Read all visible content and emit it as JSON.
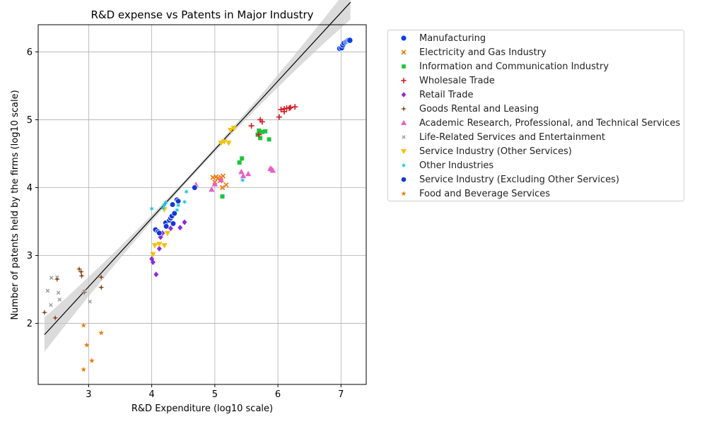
{
  "chart_data": {
    "type": "scatter",
    "title": "R&D expense vs Patents in Major Industry",
    "xlabel": "R&D Expenditure (log10 scale)",
    "ylabel": "Number of patents held by the firms (log10 scale)",
    "xlim": [
      2.2,
      7.4
    ],
    "ylim": [
      1.1,
      6.4
    ],
    "xticks": [
      3,
      4,
      5,
      6,
      7
    ],
    "yticks": [
      2,
      3,
      4,
      5,
      6
    ],
    "grid": true,
    "legend_position": "outside-right",
    "regression": {
      "intercept": -0.49,
      "slope": 1.01,
      "x_range": [
        2.3,
        7.15
      ],
      "confidence_band": true
    },
    "series": [
      {
        "name": "Manufacturing",
        "marker": "circle",
        "color": "#0a3ee6",
        "points": [
          [
            6.98,
            6.05
          ],
          [
            7.01,
            6.06
          ],
          [
            7.03,
            6.1
          ],
          [
            7.05,
            6.13
          ],
          [
            7.08,
            6.15
          ],
          [
            7.1,
            6.16
          ],
          [
            7.12,
            6.17
          ],
          [
            7.14,
            6.17
          ]
        ]
      },
      {
        "name": "Electricity and Gas Industry",
        "marker": "x",
        "color": "#f07d12",
        "points": [
          [
            4.97,
            4.15
          ],
          [
            5.02,
            4.16
          ],
          [
            5.05,
            4.14
          ],
          [
            5.1,
            4.15
          ],
          [
            5.13,
            4.17
          ],
          [
            5.0,
            4.08
          ],
          [
            5.08,
            4.1
          ],
          [
            5.12,
            4.0
          ],
          [
            5.18,
            4.04
          ]
        ]
      },
      {
        "name": "Information and Communication Industry",
        "marker": "square",
        "color": "#1fc43e",
        "points": [
          [
            5.7,
            4.84
          ],
          [
            5.75,
            4.82
          ],
          [
            5.8,
            4.83
          ],
          [
            5.68,
            4.78
          ],
          [
            5.72,
            4.73
          ],
          [
            5.86,
            4.71
          ],
          [
            5.43,
            4.43
          ],
          [
            5.39,
            4.37
          ],
          [
            5.12,
            3.87
          ]
        ]
      },
      {
        "name": "Wholesale Trade",
        "marker": "plus",
        "color": "#d6161e",
        "points": [
          [
            5.58,
            4.91
          ],
          [
            5.72,
            5.0
          ],
          [
            5.75,
            4.97
          ],
          [
            5.7,
            4.78
          ],
          [
            6.05,
            5.15
          ],
          [
            6.1,
            5.16
          ],
          [
            6.14,
            5.17
          ],
          [
            6.18,
            5.17
          ],
          [
            6.2,
            5.18
          ],
          [
            6.27,
            5.19
          ],
          [
            6.1,
            5.12
          ],
          [
            6.02,
            5.04
          ]
        ]
      },
      {
        "name": "Retail Trade",
        "marker": "diamond",
        "color": "#8a2be2",
        "points": [
          [
            4.0,
            2.95
          ],
          [
            4.02,
            2.9
          ],
          [
            4.07,
            2.72
          ],
          [
            4.12,
            3.1
          ],
          [
            4.14,
            3.27
          ],
          [
            4.17,
            3.33
          ],
          [
            4.3,
            3.4
          ],
          [
            4.45,
            3.41
          ],
          [
            4.52,
            3.49
          ]
        ]
      },
      {
        "name": "Goods Rental and Leasing",
        "marker": "star4",
        "color": "#8b3d0f",
        "points": [
          [
            2.3,
            2.16
          ],
          [
            2.47,
            2.08
          ],
          [
            2.5,
            2.65
          ],
          [
            2.85,
            2.8
          ],
          [
            2.88,
            2.76
          ],
          [
            2.89,
            2.7
          ],
          [
            2.93,
            2.46
          ],
          [
            3.2,
            2.68
          ],
          [
            3.2,
            2.53
          ]
        ]
      },
      {
        "name": "Academic Research, Professional, and Technical Services",
        "marker": "triangle-up",
        "color": "#e85fc6",
        "points": [
          [
            4.7,
            4.04
          ],
          [
            4.95,
            3.97
          ],
          [
            5.0,
            4.05
          ],
          [
            5.1,
            4.11
          ],
          [
            5.42,
            4.23
          ],
          [
            5.45,
            4.17
          ],
          [
            5.53,
            4.2
          ],
          [
            5.88,
            4.28
          ],
          [
            5.9,
            4.27
          ],
          [
            5.92,
            4.25
          ]
        ]
      },
      {
        "name": "Life-Related Services and Entertainment",
        "marker": "x-small",
        "color": "#9a9a9a",
        "points": [
          [
            2.35,
            2.48
          ],
          [
            2.4,
            2.27
          ],
          [
            2.41,
            2.67
          ],
          [
            2.5,
            2.68
          ],
          [
            2.52,
            2.45
          ],
          [
            2.54,
            2.35
          ],
          [
            2.93,
            2.47
          ],
          [
            3.02,
            2.32
          ]
        ]
      },
      {
        "name": "Service Industry (Other Services)",
        "marker": "triangle-down",
        "color": "#f2c20c",
        "points": [
          [
            4.02,
            3.02
          ],
          [
            4.05,
            3.15
          ],
          [
            4.12,
            3.17
          ],
          [
            4.2,
            3.15
          ],
          [
            4.25,
            3.33
          ],
          [
            4.2,
            3.68
          ],
          [
            5.1,
            4.66
          ],
          [
            5.15,
            4.68
          ],
          [
            5.22,
            4.66
          ],
          [
            5.25,
            4.85
          ],
          [
            5.3,
            4.88
          ]
        ]
      },
      {
        "name": "Other Industries",
        "marker": "star6",
        "color": "#19c6e8",
        "points": [
          [
            4.0,
            3.69
          ],
          [
            4.18,
            3.7
          ],
          [
            4.2,
            3.74
          ],
          [
            4.22,
            3.78
          ],
          [
            4.33,
            3.75
          ],
          [
            4.4,
            3.67
          ],
          [
            4.42,
            3.74
          ],
          [
            4.52,
            3.79
          ],
          [
            4.55,
            3.94
          ],
          [
            5.44,
            4.11
          ]
        ]
      },
      {
        "name": "Service Industry (Excluding Other Services)",
        "marker": "hexagon",
        "color": "#1337d8",
        "points": [
          [
            4.06,
            3.38
          ],
          [
            4.1,
            3.35
          ],
          [
            4.12,
            3.33
          ],
          [
            4.22,
            3.48
          ],
          [
            4.23,
            3.43
          ],
          [
            4.28,
            3.52
          ],
          [
            4.3,
            3.55
          ],
          [
            4.32,
            3.58
          ],
          [
            4.34,
            3.47
          ],
          [
            4.36,
            3.62
          ],
          [
            4.33,
            3.75
          ],
          [
            4.4,
            3.82
          ],
          [
            4.42,
            3.8
          ],
          [
            4.68,
            4.0
          ]
        ]
      },
      {
        "name": "Food and Beverage Services",
        "marker": "star5",
        "color": "#f07d12",
        "points": [
          [
            2.92,
            1.97
          ],
          [
            2.97,
            1.68
          ],
          [
            2.92,
            1.32
          ],
          [
            3.05,
            1.45
          ],
          [
            3.2,
            1.86
          ]
        ]
      }
    ]
  }
}
